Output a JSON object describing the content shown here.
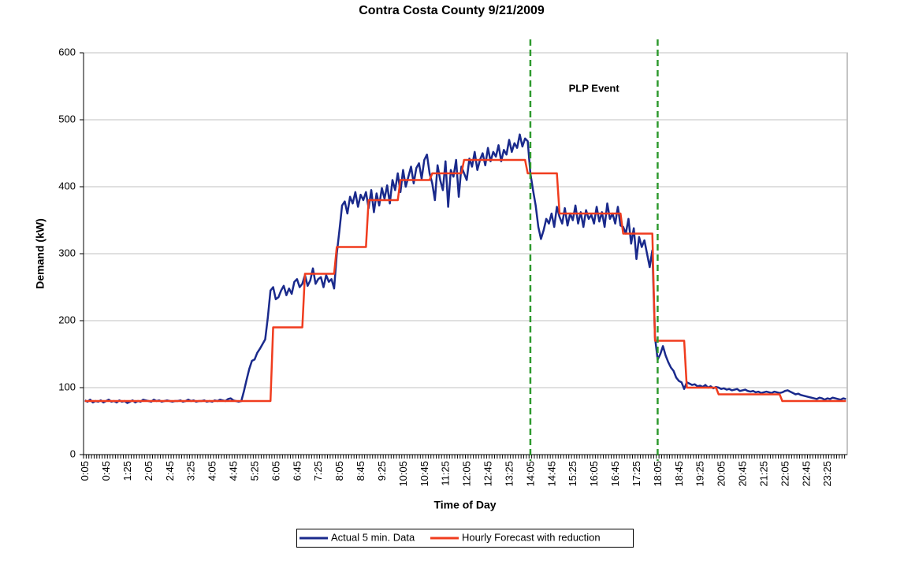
{
  "chart_data": {
    "type": "line",
    "title": "Contra Costa County 9/21/2009",
    "x_label": "Time of Day",
    "y_label": "Demand (kW)",
    "annotation": "PLP Event",
    "event_lines": [
      "14:05",
      "18:05"
    ],
    "event_line_color": "#2e9a2e",
    "ylim": [
      0,
      600
    ],
    "yticks": [
      0,
      100,
      200,
      300,
      400,
      500,
      600
    ],
    "grid": true,
    "legend": "bottom",
    "categories": [
      "0:05",
      null,
      null,
      null,
      null,
      null,
      null,
      null,
      "0:45",
      null,
      null,
      null,
      null,
      null,
      null,
      null,
      "1:25",
      null,
      null,
      null,
      null,
      null,
      null,
      null,
      "2:05",
      null,
      null,
      null,
      null,
      null,
      null,
      null,
      "2:45",
      null,
      null,
      null,
      null,
      null,
      null,
      null,
      "3:25",
      null,
      null,
      null,
      null,
      null,
      null,
      null,
      "4:05",
      null,
      null,
      null,
      null,
      null,
      null,
      null,
      "4:45",
      null,
      null,
      null,
      null,
      null,
      null,
      null,
      "5:25",
      null,
      null,
      null,
      null,
      null,
      null,
      null,
      "6:05",
      null,
      null,
      null,
      null,
      null,
      null,
      null,
      "6:45",
      null,
      null,
      null,
      null,
      null,
      null,
      null,
      "7:25",
      null,
      null,
      null,
      null,
      null,
      null,
      null,
      "8:05",
      null,
      null,
      null,
      null,
      null,
      null,
      null,
      "8:45",
      null,
      null,
      null,
      null,
      null,
      null,
      null,
      "9:25",
      null,
      null,
      null,
      null,
      null,
      null,
      null,
      "10:05",
      null,
      null,
      null,
      null,
      null,
      null,
      null,
      "10:45",
      null,
      null,
      null,
      null,
      null,
      null,
      null,
      "11:25",
      null,
      null,
      null,
      null,
      null,
      null,
      null,
      "12:05",
      null,
      null,
      null,
      null,
      null,
      null,
      null,
      "12:45",
      null,
      null,
      null,
      null,
      null,
      null,
      null,
      "13:25",
      null,
      null,
      null,
      null,
      null,
      null,
      null,
      "14:05",
      null,
      null,
      null,
      null,
      null,
      null,
      null,
      "14:45",
      null,
      null,
      null,
      null,
      null,
      null,
      null,
      "15:25",
      null,
      null,
      null,
      null,
      null,
      null,
      null,
      "16:05",
      null,
      null,
      null,
      null,
      null,
      null,
      null,
      "16:45",
      null,
      null,
      null,
      null,
      null,
      null,
      null,
      "17:25",
      null,
      null,
      null,
      null,
      null,
      null,
      null,
      "18:05",
      null,
      null,
      null,
      null,
      null,
      null,
      null,
      "18:45",
      null,
      null,
      null,
      null,
      null,
      null,
      null,
      "19:25",
      null,
      null,
      null,
      null,
      null,
      null,
      null,
      "20:05",
      null,
      null,
      null,
      null,
      null,
      null,
      null,
      "20:45",
      null,
      null,
      null,
      null,
      null,
      null,
      null,
      "21:25",
      null,
      null,
      null,
      null,
      null,
      null,
      null,
      "22:05",
      null,
      null,
      null,
      null,
      null,
      null,
      null,
      "22:45",
      null,
      null,
      null,
      null,
      null,
      null,
      null,
      "23:25",
      null,
      null,
      null,
      null,
      null,
      null,
      null
    ],
    "series": [
      {
        "name": "Actual 5 min. Data",
        "color": "#1a2a8c",
        "values": [
          81,
          79,
          82,
          78,
          80,
          79,
          81,
          78,
          80,
          82,
          79,
          80,
          78,
          81,
          79,
          80,
          77,
          79,
          81,
          78,
          80,
          79,
          82,
          81,
          80,
          79,
          82,
          80,
          81,
          79,
          80,
          81,
          80,
          79,
          80,
          80,
          81,
          79,
          80,
          82,
          80,
          81,
          79,
          80,
          80,
          81,
          79,
          80,
          79,
          81,
          80,
          82,
          81,
          80,
          83,
          84,
          81,
          80,
          79,
          80,
          95,
          112,
          128,
          140,
          142,
          152,
          158,
          165,
          172,
          205,
          245,
          250,
          232,
          235,
          245,
          252,
          238,
          248,
          240,
          258,
          262,
          250,
          255,
          268,
          252,
          260,
          278,
          255,
          262,
          265,
          250,
          268,
          258,
          262,
          248,
          300,
          335,
          372,
          378,
          360,
          385,
          375,
          392,
          370,
          388,
          380,
          392,
          368,
          395,
          362,
          390,
          372,
          398,
          382,
          402,
          375,
          410,
          395,
          420,
          392,
          425,
          400,
          415,
          430,
          405,
          428,
          435,
          412,
          440,
          448,
          420,
          405,
          380,
          432,
          410,
          395,
          438,
          370,
          425,
          415,
          440,
          385,
          430,
          420,
          410,
          442,
          430,
          452,
          425,
          440,
          450,
          432,
          458,
          438,
          452,
          445,
          462,
          438,
          455,
          448,
          470,
          452,
          465,
          458,
          478,
          460,
          472,
          468,
          420,
          395,
          372,
          340,
          322,
          335,
          352,
          345,
          360,
          340,
          370,
          355,
          345,
          368,
          342,
          360,
          350,
          372,
          345,
          362,
          340,
          365,
          352,
          358,
          345,
          370,
          348,
          362,
          340,
          375,
          352,
          360,
          345,
          370,
          342,
          340,
          330,
          352,
          315,
          338,
          292,
          325,
          310,
          320,
          300,
          280,
          305,
          175,
          142,
          150,
          162,
          148,
          138,
          130,
          125,
          115,
          110,
          108,
          98,
          108,
          106,
          104,
          105,
          102,
          103,
          101,
          104,
          100,
          102,
          99,
          101,
          100,
          98,
          99,
          97,
          98,
          96,
          97,
          98,
          95,
          96,
          97,
          95,
          94,
          95,
          93,
          94,
          92,
          93,
          94,
          93,
          92,
          94,
          93,
          92,
          93,
          95,
          96,
          94,
          92,
          90,
          91,
          89,
          88,
          87,
          86,
          85,
          84,
          83,
          85,
          84,
          82,
          84,
          83,
          85,
          84,
          83,
          82,
          84,
          83
        ]
      },
      {
        "name": "Hourly Forecast with reduction",
        "color": "#f03c1e",
        "values": [
          80,
          80,
          80,
          80,
          80,
          80,
          80,
          80,
          80,
          80,
          80,
          80,
          80,
          80,
          80,
          80,
          80,
          80,
          80,
          80,
          80,
          80,
          80,
          80,
          80,
          80,
          80,
          80,
          80,
          80,
          80,
          80,
          80,
          80,
          80,
          80,
          80,
          80,
          80,
          80,
          80,
          80,
          80,
          80,
          80,
          80,
          80,
          80,
          80,
          80,
          80,
          80,
          80,
          80,
          80,
          80,
          80,
          80,
          80,
          80,
          80,
          80,
          80,
          80,
          80,
          80,
          80,
          80,
          80,
          80,
          80,
          190,
          190,
          190,
          190,
          190,
          190,
          190,
          190,
          190,
          190,
          190,
          190,
          270,
          270,
          270,
          270,
          270,
          270,
          270,
          270,
          270,
          270,
          270,
          270,
          310,
          310,
          310,
          310,
          310,
          310,
          310,
          310,
          310,
          310,
          310,
          310,
          380,
          380,
          380,
          380,
          380,
          380,
          380,
          380,
          380,
          380,
          380,
          380,
          410,
          410,
          410,
          410,
          410,
          410,
          410,
          410,
          410,
          410,
          410,
          410,
          420,
          420,
          420,
          420,
          420,
          420,
          420,
          420,
          420,
          420,
          420,
          420,
          440,
          440,
          440,
          440,
          440,
          440,
          440,
          440,
          440,
          440,
          440,
          440,
          440,
          440,
          440,
          440,
          440,
          440,
          440,
          440,
          440,
          440,
          440,
          440,
          420,
          420,
          420,
          420,
          420,
          420,
          420,
          420,
          420,
          420,
          420,
          420,
          360,
          360,
          360,
          360,
          360,
          360,
          360,
          360,
          360,
          360,
          360,
          360,
          360,
          360,
          360,
          360,
          360,
          360,
          360,
          360,
          360,
          360,
          360,
          360,
          330,
          330,
          330,
          330,
          330,
          330,
          330,
          330,
          330,
          330,
          330,
          330,
          170,
          170,
          170,
          170,
          170,
          170,
          170,
          170,
          170,
          170,
          170,
          170,
          100,
          100,
          100,
          100,
          100,
          100,
          100,
          100,
          100,
          100,
          100,
          100,
          90,
          90,
          90,
          90,
          90,
          90,
          90,
          90,
          90,
          90,
          90,
          90,
          90,
          90,
          90,
          90,
          90,
          90,
          90,
          90,
          90,
          90,
          90,
          90,
          80,
          80,
          80,
          80,
          80,
          80,
          80,
          80,
          80,
          80,
          80,
          80,
          80,
          80,
          80,
          80,
          80,
          80,
          80,
          80,
          80,
          80,
          80,
          80,
          80
        ]
      }
    ]
  }
}
